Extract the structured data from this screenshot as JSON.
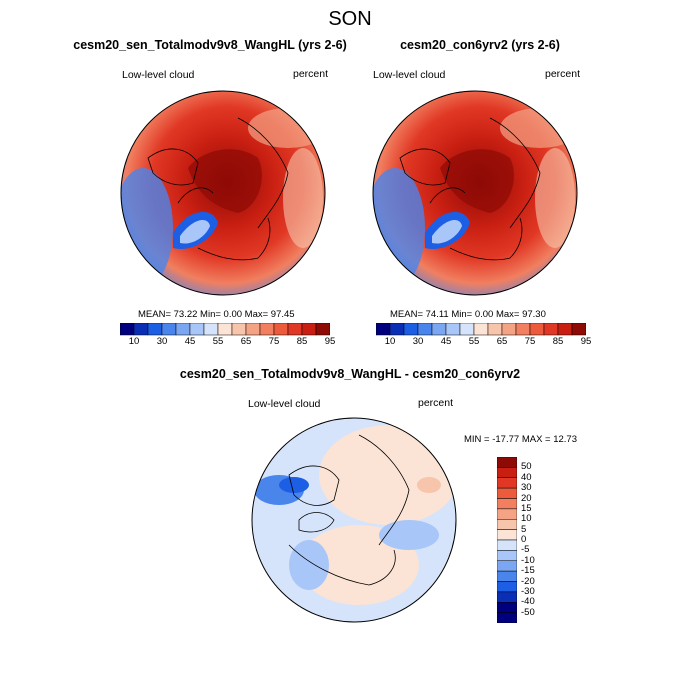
{
  "page": {
    "title": "SON"
  },
  "colors": {
    "full_scale": [
      "#00007f",
      "#0a2fb4",
      "#1c5ee4",
      "#4a85ec",
      "#7aa6f2",
      "#a9c6f8",
      "#d5e4fb",
      "#fbe3d6",
      "#f7c5ac",
      "#f4a385",
      "#f17f60",
      "#ec5b3c",
      "#e13825",
      "#c81f12",
      "#8e0a05"
    ],
    "diff_scale": [
      "#00007f",
      "#0a2fb4",
      "#1c5ee4",
      "#4a85ec",
      "#7aa6f2",
      "#a9c6f8",
      "#d5e4fb",
      "#fbe3d6",
      "#f7c5ac",
      "#f4a385",
      "#f17f60",
      "#ec5b3c",
      "#e13825",
      "#c81f12",
      "#8e0a05"
    ]
  },
  "panels": [
    {
      "title": "cesm20_sen_Totalmodv9v8_WangHL (yrs 2-6)",
      "left_label": "Low-level cloud",
      "right_label": "percent",
      "stats": "MEAN= 73.22 Min= 0.00 Max= 97.45",
      "colorbar_labels": [
        "10",
        "30",
        "45",
        "55",
        "65",
        "75",
        "85",
        "95"
      ]
    },
    {
      "title": "cesm20_con6yrv2 (yrs 2-6)",
      "left_label": "Low-level cloud",
      "right_label": "percent",
      "stats": "MEAN= 74.11 Min= 0.00 Max= 97.30",
      "colorbar_labels": [
        "10",
        "30",
        "45",
        "55",
        "65",
        "75",
        "85",
        "95"
      ]
    },
    {
      "title": "cesm20_sen_Totalmodv9v8_WangHL - cesm20_con6yrv2",
      "left_label": "Low-level cloud",
      "right_label": "percent",
      "stats": "MIN = -17.77 MAX = 12.73",
      "colorbar_labels": [
        "50",
        "40",
        "30",
        "20",
        "15",
        "10",
        "5",
        "0",
        "-5",
        "-10",
        "-15",
        "-20",
        "-30",
        "-40",
        "-50"
      ]
    }
  ]
}
